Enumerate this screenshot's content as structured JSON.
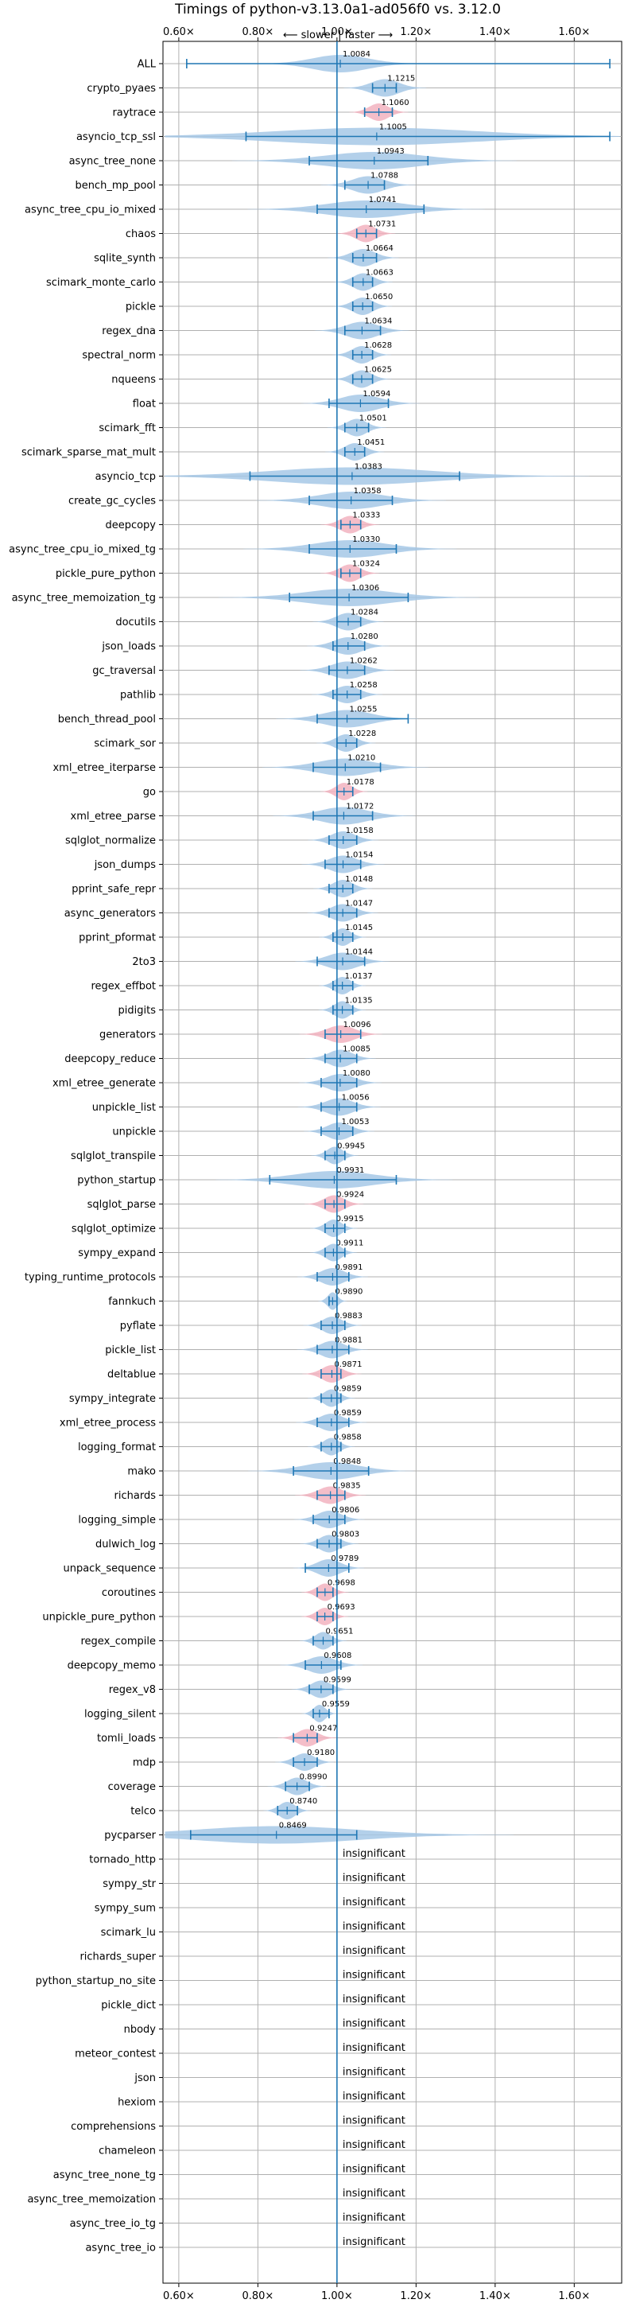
{
  "chart_data": {
    "type": "violin",
    "title": "Timings of python-v3.13.0a1-ad056f0 vs. 3.12.0",
    "subtitle": "⟵ slower | faster ⟶",
    "xlim": [
      0.56,
      1.72
    ],
    "x_ticks": [
      "0.60×",
      "0.80×",
      "1.00×",
      "1.20×",
      "1.40×",
      "1.60×"
    ],
    "x_tick_values": [
      0.6,
      0.8,
      1.0,
      1.2,
      1.4,
      1.6
    ],
    "reference_line": 1.0,
    "grid": true,
    "insignificant_text": "insignificant",
    "rows": [
      {
        "name": "ALL",
        "label": "1.0084",
        "value": 1.0084,
        "lo": 0.62,
        "hi": 1.69,
        "spread": 0.07,
        "highlight": false
      },
      {
        "name": "crypto_pyaes",
        "label": "1.1215",
        "value": 1.1215,
        "lo": 1.09,
        "hi": 1.15,
        "spread": 0.035,
        "highlight": false
      },
      {
        "name": "raytrace",
        "label": "1.1060",
        "value": 1.106,
        "lo": 1.07,
        "hi": 1.14,
        "spread": 0.025,
        "highlight": true
      },
      {
        "name": "asyncio_tcp_ssl",
        "label": "1.1005",
        "value": 1.1005,
        "lo": 0.77,
        "hi": 1.69,
        "spread": 0.25,
        "highlight": false
      },
      {
        "name": "async_tree_none",
        "label": "1.0943",
        "value": 1.0943,
        "lo": 0.93,
        "hi": 1.23,
        "spread": 0.12,
        "highlight": false
      },
      {
        "name": "bench_mp_pool",
        "label": "1.0788",
        "value": 1.0788,
        "lo": 1.02,
        "hi": 1.12,
        "spread": 0.04,
        "highlight": false
      },
      {
        "name": "async_tree_cpu_io_mixed",
        "label": "1.0741",
        "value": 1.0741,
        "lo": 0.95,
        "hi": 1.22,
        "spread": 0.1,
        "highlight": false
      },
      {
        "name": "chaos",
        "label": "1.0731",
        "value": 1.0731,
        "lo": 1.05,
        "hi": 1.1,
        "spread": 0.025,
        "highlight": true
      },
      {
        "name": "sqlite_synth",
        "label": "1.0664",
        "value": 1.0664,
        "lo": 1.04,
        "hi": 1.1,
        "spread": 0.03,
        "highlight": false
      },
      {
        "name": "scimark_monte_carlo",
        "label": "1.0663",
        "value": 1.0663,
        "lo": 1.04,
        "hi": 1.09,
        "spread": 0.025,
        "highlight": false
      },
      {
        "name": "pickle",
        "label": "1.0650",
        "value": 1.065,
        "lo": 1.04,
        "hi": 1.09,
        "spread": 0.025,
        "highlight": false
      },
      {
        "name": "regex_dna",
        "label": "1.0634",
        "value": 1.0634,
        "lo": 1.02,
        "hi": 1.11,
        "spread": 0.04,
        "highlight": false
      },
      {
        "name": "spectral_norm",
        "label": "1.0628",
        "value": 1.0628,
        "lo": 1.04,
        "hi": 1.09,
        "spread": 0.025,
        "highlight": false
      },
      {
        "name": "nqueens",
        "label": "1.0625",
        "value": 1.0625,
        "lo": 1.04,
        "hi": 1.09,
        "spread": 0.025,
        "highlight": false
      },
      {
        "name": "float",
        "label": "1.0594",
        "value": 1.0594,
        "lo": 0.98,
        "hi": 1.13,
        "spread": 0.05,
        "highlight": false
      },
      {
        "name": "scimark_fft",
        "label": "1.0501",
        "value": 1.0501,
        "lo": 1.02,
        "hi": 1.08,
        "spread": 0.025,
        "highlight": false
      },
      {
        "name": "scimark_sparse_mat_mult",
        "label": "1.0451",
        "value": 1.0451,
        "lo": 1.02,
        "hi": 1.07,
        "spread": 0.025,
        "highlight": false
      },
      {
        "name": "asyncio_tcp",
        "label": "1.0383",
        "value": 1.0383,
        "lo": 0.78,
        "hi": 1.31,
        "spread": 0.2,
        "highlight": false
      },
      {
        "name": "create_gc_cycles",
        "label": "1.0358",
        "value": 1.0358,
        "lo": 0.93,
        "hi": 1.14,
        "spread": 0.08,
        "highlight": false
      },
      {
        "name": "deepcopy",
        "label": "1.0333",
        "value": 1.0333,
        "lo": 1.01,
        "hi": 1.06,
        "spread": 0.025,
        "highlight": true
      },
      {
        "name": "async_tree_cpu_io_mixed_tg",
        "label": "1.0330",
        "value": 1.033,
        "lo": 0.93,
        "hi": 1.15,
        "spread": 0.09,
        "highlight": false
      },
      {
        "name": "pickle_pure_python",
        "label": "1.0324",
        "value": 1.0324,
        "lo": 1.01,
        "hi": 1.06,
        "spread": 0.025,
        "highlight": true
      },
      {
        "name": "async_tree_memoization_tg",
        "label": "1.0306",
        "value": 1.0306,
        "lo": 0.88,
        "hi": 1.18,
        "spread": 0.11,
        "highlight": false
      },
      {
        "name": "docutils",
        "label": "1.0284",
        "value": 1.0284,
        "lo": 1.0,
        "hi": 1.06,
        "spread": 0.03,
        "highlight": false
      },
      {
        "name": "json_loads",
        "label": "1.0280",
        "value": 1.028,
        "lo": 0.99,
        "hi": 1.07,
        "spread": 0.035,
        "highlight": false
      },
      {
        "name": "gc_traversal",
        "label": "1.0262",
        "value": 1.0262,
        "lo": 0.98,
        "hi": 1.07,
        "spread": 0.04,
        "highlight": false
      },
      {
        "name": "pathlib",
        "label": "1.0258",
        "value": 1.0258,
        "lo": 0.99,
        "hi": 1.06,
        "spread": 0.03,
        "highlight": false
      },
      {
        "name": "bench_thread_pool",
        "label": "1.0255",
        "value": 1.0255,
        "lo": 0.95,
        "hi": 1.18,
        "spread": 0.06,
        "highlight": false
      },
      {
        "name": "scimark_sor",
        "label": "1.0228",
        "value": 1.0228,
        "lo": 1.0,
        "hi": 1.05,
        "spread": 0.025,
        "highlight": false
      },
      {
        "name": "xml_etree_iterparse",
        "label": "1.0210",
        "value": 1.021,
        "lo": 0.94,
        "hi": 1.11,
        "spread": 0.07,
        "highlight": false
      },
      {
        "name": "go",
        "label": "1.0178",
        "value": 1.0178,
        "lo": 1.0,
        "hi": 1.04,
        "spread": 0.02,
        "highlight": true
      },
      {
        "name": "xml_etree_parse",
        "label": "1.0172",
        "value": 1.0172,
        "lo": 0.94,
        "hi": 1.09,
        "spread": 0.06,
        "highlight": false
      },
      {
        "name": "sqlglot_normalize",
        "label": "1.0158",
        "value": 1.0158,
        "lo": 0.98,
        "hi": 1.05,
        "spread": 0.03,
        "highlight": false
      },
      {
        "name": "json_dumps",
        "label": "1.0154",
        "value": 1.0154,
        "lo": 0.97,
        "hi": 1.06,
        "spread": 0.035,
        "highlight": false
      },
      {
        "name": "pprint_safe_repr",
        "label": "1.0148",
        "value": 1.0148,
        "lo": 0.98,
        "hi": 1.04,
        "spread": 0.025,
        "highlight": false
      },
      {
        "name": "async_generators",
        "label": "1.0147",
        "value": 1.0147,
        "lo": 0.98,
        "hi": 1.05,
        "spread": 0.03,
        "highlight": false
      },
      {
        "name": "pprint_pformat",
        "label": "1.0145",
        "value": 1.0145,
        "lo": 0.99,
        "hi": 1.04,
        "spread": 0.02,
        "highlight": false
      },
      {
        "name": "2to3",
        "label": "1.0144",
        "value": 1.0144,
        "lo": 0.95,
        "hi": 1.07,
        "spread": 0.04,
        "highlight": false
      },
      {
        "name": "regex_effbot",
        "label": "1.0137",
        "value": 1.0137,
        "lo": 0.99,
        "hi": 1.04,
        "spread": 0.02,
        "highlight": false
      },
      {
        "name": "pidigits",
        "label": "1.0135",
        "value": 1.0135,
        "lo": 0.99,
        "hi": 1.04,
        "spread": 0.02,
        "highlight": false
      },
      {
        "name": "generators",
        "label": "1.0096",
        "value": 1.0096,
        "lo": 0.97,
        "hi": 1.06,
        "spread": 0.035,
        "highlight": true
      },
      {
        "name": "deepcopy_reduce",
        "label": "1.0085",
        "value": 1.0085,
        "lo": 0.97,
        "hi": 1.05,
        "spread": 0.03,
        "highlight": false
      },
      {
        "name": "xml_etree_generate",
        "label": "1.0080",
        "value": 1.008,
        "lo": 0.96,
        "hi": 1.05,
        "spread": 0.035,
        "highlight": false
      },
      {
        "name": "unpickle_list",
        "label": "1.0056",
        "value": 1.0056,
        "lo": 0.96,
        "hi": 1.05,
        "spread": 0.035,
        "highlight": false
      },
      {
        "name": "unpickle",
        "label": "1.0053",
        "value": 1.0053,
        "lo": 0.96,
        "hi": 1.04,
        "spread": 0.03,
        "highlight": false
      },
      {
        "name": "sqlglot_transpile",
        "label": "0.9945",
        "value": 0.9945,
        "lo": 0.97,
        "hi": 1.02,
        "spread": 0.02,
        "highlight": false
      },
      {
        "name": "python_startup",
        "label": "0.9931",
        "value": 0.9931,
        "lo": 0.83,
        "hi": 1.15,
        "spread": 0.1,
        "highlight": false
      },
      {
        "name": "sqlglot_parse",
        "label": "0.9924",
        "value": 0.9924,
        "lo": 0.97,
        "hi": 1.02,
        "spread": 0.025,
        "highlight": true
      },
      {
        "name": "sqlglot_optimize",
        "label": "0.9915",
        "value": 0.9915,
        "lo": 0.97,
        "hi": 1.02,
        "spread": 0.02,
        "highlight": false
      },
      {
        "name": "sympy_expand",
        "label": "0.9911",
        "value": 0.9911,
        "lo": 0.97,
        "hi": 1.02,
        "spread": 0.02,
        "highlight": false
      },
      {
        "name": "typing_runtime_protocols",
        "label": "0.9891",
        "value": 0.9891,
        "lo": 0.95,
        "hi": 1.03,
        "spread": 0.03,
        "highlight": false
      },
      {
        "name": "fannkuch",
        "label": "0.9890",
        "value": 0.989,
        "lo": 0.98,
        "hi": 1.0,
        "spread": 0.012,
        "highlight": false
      },
      {
        "name": "pyflate",
        "label": "0.9883",
        "value": 0.9883,
        "lo": 0.96,
        "hi": 1.02,
        "spread": 0.025,
        "highlight": false
      },
      {
        "name": "pickle_list",
        "label": "0.9881",
        "value": 0.9881,
        "lo": 0.95,
        "hi": 1.03,
        "spread": 0.03,
        "highlight": false
      },
      {
        "name": "deltablue",
        "label": "0.9871",
        "value": 0.9871,
        "lo": 0.96,
        "hi": 1.01,
        "spread": 0.025,
        "highlight": true
      },
      {
        "name": "sympy_integrate",
        "label": "0.9859",
        "value": 0.9859,
        "lo": 0.96,
        "hi": 1.01,
        "spread": 0.02,
        "highlight": false
      },
      {
        "name": "xml_etree_process",
        "label": "0.9859",
        "value": 0.9859,
        "lo": 0.95,
        "hi": 1.03,
        "spread": 0.03,
        "highlight": false
      },
      {
        "name": "logging_format",
        "label": "0.9858",
        "value": 0.9858,
        "lo": 0.96,
        "hi": 1.01,
        "spread": 0.02,
        "highlight": false
      },
      {
        "name": "mako",
        "label": "0.9848",
        "value": 0.9848,
        "lo": 0.89,
        "hi": 1.08,
        "spread": 0.07,
        "highlight": false
      },
      {
        "name": "richards",
        "label": "0.9835",
        "value": 0.9835,
        "lo": 0.95,
        "hi": 1.02,
        "spread": 0.03,
        "highlight": true
      },
      {
        "name": "logging_simple",
        "label": "0.9806",
        "value": 0.9806,
        "lo": 0.94,
        "hi": 1.02,
        "spread": 0.03,
        "highlight": false
      },
      {
        "name": "dulwich_log",
        "label": "0.9803",
        "value": 0.9803,
        "lo": 0.95,
        "hi": 1.01,
        "spread": 0.025,
        "highlight": false
      },
      {
        "name": "unpack_sequence",
        "label": "0.9789",
        "value": 0.9789,
        "lo": 0.92,
        "hi": 1.03,
        "spread": 0.03,
        "highlight": false
      },
      {
        "name": "coroutines",
        "label": "0.9698",
        "value": 0.9698,
        "lo": 0.95,
        "hi": 0.99,
        "spread": 0.02,
        "highlight": true
      },
      {
        "name": "unpickle_pure_python",
        "label": "0.9693",
        "value": 0.9693,
        "lo": 0.95,
        "hi": 0.99,
        "spread": 0.02,
        "highlight": true
      },
      {
        "name": "regex_compile",
        "label": "0.9651",
        "value": 0.9651,
        "lo": 0.94,
        "hi": 0.99,
        "spread": 0.02,
        "highlight": false
      },
      {
        "name": "deepcopy_memo",
        "label": "0.9608",
        "value": 0.9608,
        "lo": 0.92,
        "hi": 1.01,
        "spread": 0.035,
        "highlight": false
      },
      {
        "name": "regex_v8",
        "label": "0.9599",
        "value": 0.9599,
        "lo": 0.93,
        "hi": 0.99,
        "spread": 0.025,
        "highlight": false
      },
      {
        "name": "logging_silent",
        "label": "0.9559",
        "value": 0.9559,
        "lo": 0.94,
        "hi": 0.98,
        "spread": 0.015,
        "highlight": false
      },
      {
        "name": "tomli_loads",
        "label": "0.9247",
        "value": 0.9247,
        "lo": 0.89,
        "hi": 0.95,
        "spread": 0.025,
        "highlight": true
      },
      {
        "name": "mdp",
        "label": "0.9180",
        "value": 0.918,
        "lo": 0.89,
        "hi": 0.95,
        "spread": 0.025,
        "highlight": false
      },
      {
        "name": "coverage",
        "label": "0.8990",
        "value": 0.899,
        "lo": 0.87,
        "hi": 0.93,
        "spread": 0.025,
        "highlight": false
      },
      {
        "name": "telco",
        "label": "0.8740",
        "value": 0.874,
        "lo": 0.85,
        "hi": 0.9,
        "spread": 0.02,
        "highlight": false
      },
      {
        "name": "pycparser",
        "label": "0.8469",
        "value": 0.8469,
        "lo": 0.63,
        "hi": 1.05,
        "spread": 0.2,
        "highlight": false
      },
      {
        "name": "tornado_http",
        "label": null
      },
      {
        "name": "sympy_str",
        "label": null
      },
      {
        "name": "sympy_sum",
        "label": null
      },
      {
        "name": "scimark_lu",
        "label": null
      },
      {
        "name": "richards_super",
        "label": null
      },
      {
        "name": "python_startup_no_site",
        "label": null
      },
      {
        "name": "pickle_dict",
        "label": null
      },
      {
        "name": "nbody",
        "label": null
      },
      {
        "name": "meteor_contest",
        "label": null
      },
      {
        "name": "json",
        "label": null
      },
      {
        "name": "hexiom",
        "label": null
      },
      {
        "name": "comprehensions",
        "label": null
      },
      {
        "name": "chameleon",
        "label": null
      },
      {
        "name": "async_tree_none_tg",
        "label": null
      },
      {
        "name": "async_tree_memoization",
        "label": null
      },
      {
        "name": "async_tree_io_tg",
        "label": null
      },
      {
        "name": "async_tree_io",
        "label": null
      }
    ],
    "colors": {
      "violin": "#a6c8e6",
      "violin_highlight": "#f2b3c0",
      "line": "#1f77b4",
      "grid": "#b0b0b0",
      "text": "#000000"
    }
  }
}
